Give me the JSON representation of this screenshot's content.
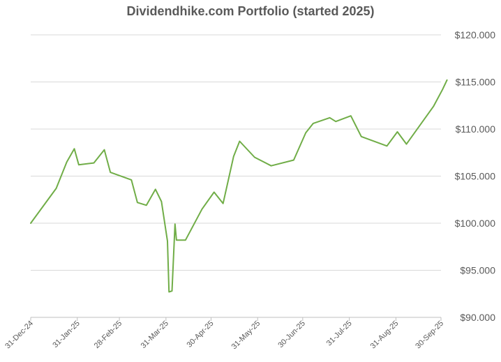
{
  "chart_data": {
    "type": "line",
    "title": "Dividendhike.com Portfolio (started 2025)",
    "xlabel": "",
    "ylabel": "",
    "ylim": [
      90,
      120
    ],
    "grid": true,
    "legend": "none",
    "y_axis_side": "right",
    "colors": {
      "line": "#70AD47",
      "grid": "#D9D9D9",
      "text": "#595959"
    },
    "y_ticks": [
      {
        "value": 90,
        "label": "$90.000"
      },
      {
        "value": 95,
        "label": "$95.000"
      },
      {
        "value": 100,
        "label": "$100.000"
      },
      {
        "value": 105,
        "label": "$105.000"
      },
      {
        "value": 110,
        "label": "$110.000"
      },
      {
        "value": 115,
        "label": "$115.000"
      },
      {
        "value": 120,
        "label": "$120.000"
      }
    ],
    "x_range": [
      "2024-12-31",
      "2025-09-30"
    ],
    "x_ticks": [
      {
        "date": "2024-12-31",
        "label": "31-Dec-24"
      },
      {
        "date": "2025-01-31",
        "label": "31-Jan-25"
      },
      {
        "date": "2025-02-28",
        "label": "28-Feb-25"
      },
      {
        "date": "2025-03-31",
        "label": "31-Mar-25"
      },
      {
        "date": "2025-04-30",
        "label": "30-Apr-25"
      },
      {
        "date": "2025-05-31",
        "label": "31-May-25"
      },
      {
        "date": "2025-06-30",
        "label": "30-Jun-25"
      },
      {
        "date": "2025-07-31",
        "label": "31-Jul-25"
      },
      {
        "date": "2025-08-31",
        "label": "31-Aug-25"
      },
      {
        "date": "2025-09-30",
        "label": "30-Sep-25"
      }
    ],
    "series": [
      {
        "points": [
          {
            "x": "2024-12-31",
            "y": 100.0
          },
          {
            "x": "2025-01-17",
            "y": 103.7
          },
          {
            "x": "2025-01-24",
            "y": 106.5
          },
          {
            "x": "2025-01-29",
            "y": 107.9
          },
          {
            "x": "2025-02-01",
            "y": 106.2
          },
          {
            "x": "2025-02-11",
            "y": 106.4
          },
          {
            "x": "2025-02-18",
            "y": 107.8
          },
          {
            "x": "2025-02-22",
            "y": 105.4
          },
          {
            "x": "2025-03-08",
            "y": 104.6
          },
          {
            "x": "2025-03-12",
            "y": 102.2
          },
          {
            "x": "2025-03-18",
            "y": 101.9
          },
          {
            "x": "2025-03-24",
            "y": 103.6
          },
          {
            "x": "2025-03-28",
            "y": 102.3
          },
          {
            "x": "2025-04-01",
            "y": 98.1
          },
          {
            "x": "2025-04-02",
            "y": 92.7
          },
          {
            "x": "2025-04-04",
            "y": 92.8
          },
          {
            "x": "2025-04-06",
            "y": 99.9
          },
          {
            "x": "2025-04-07",
            "y": 98.2
          },
          {
            "x": "2025-04-13",
            "y": 98.2
          },
          {
            "x": "2025-04-24",
            "y": 101.5
          },
          {
            "x": "2025-05-02",
            "y": 103.3
          },
          {
            "x": "2025-05-08",
            "y": 102.1
          },
          {
            "x": "2025-05-15",
            "y": 107.1
          },
          {
            "x": "2025-05-19",
            "y": 108.7
          },
          {
            "x": "2025-05-29",
            "y": 107.0
          },
          {
            "x": "2025-06-09",
            "y": 106.1
          },
          {
            "x": "2025-06-24",
            "y": 106.7
          },
          {
            "x": "2025-07-02",
            "y": 109.6
          },
          {
            "x": "2025-07-07",
            "y": 110.6
          },
          {
            "x": "2025-07-18",
            "y": 111.2
          },
          {
            "x": "2025-07-22",
            "y": 110.8
          },
          {
            "x": "2025-08-01",
            "y": 111.4
          },
          {
            "x": "2025-08-08",
            "y": 109.2
          },
          {
            "x": "2025-08-25",
            "y": 108.2
          },
          {
            "x": "2025-09-01",
            "y": 109.7
          },
          {
            "x": "2025-09-07",
            "y": 108.4
          },
          {
            "x": "2025-09-25",
            "y": 112.4
          },
          {
            "x": "2025-10-01",
            "y": 114.2
          },
          {
            "x": "2025-10-04",
            "y": 115.2
          }
        ]
      }
    ]
  }
}
